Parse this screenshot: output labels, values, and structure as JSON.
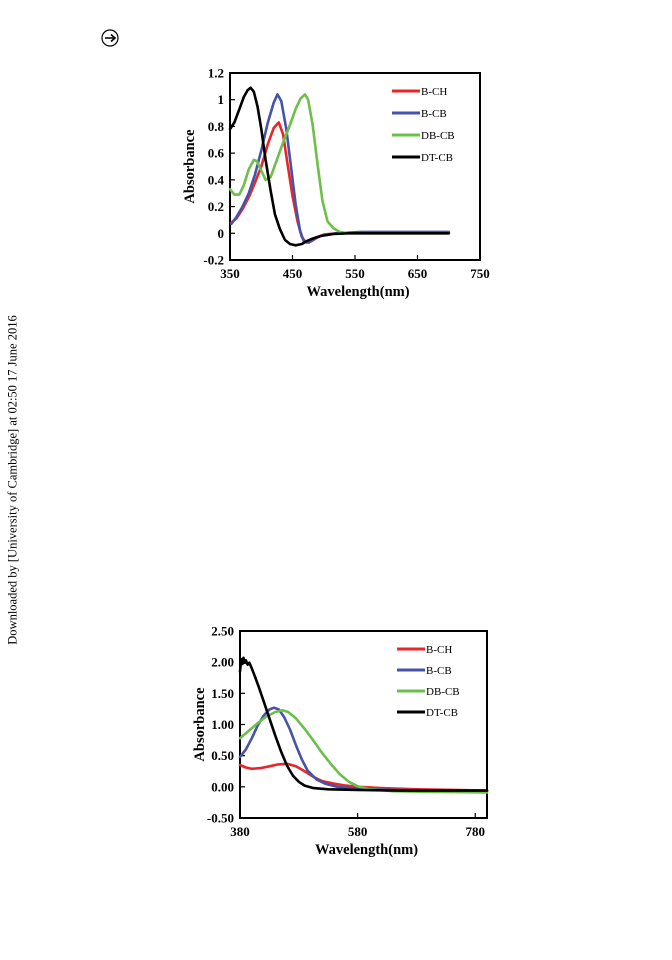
{
  "page": {
    "side_note": "Downloaded by [University of Cambridge] at 02:50 17 June 2016",
    "mark_icon": "circled-arrow-icon"
  },
  "colors": {
    "B-CH": "#e8262a",
    "B-CB": "#4653a8",
    "DB-CB": "#6cc04a",
    "DT-CB": "#000000"
  },
  "chart_data": [
    {
      "type": "line",
      "title": "",
      "xlabel": "Wavelength(nm)",
      "ylabel": "Absorbance",
      "xlim": [
        350,
        750
      ],
      "ylim": [
        -0.2,
        1.2
      ],
      "x_ticks": [
        350,
        450,
        550,
        650,
        750
      ],
      "x_tick_labels": [
        "350",
        "450",
        "550",
        "650",
        "750"
      ],
      "y_ticks": [
        -0.2,
        0,
        0.2,
        0.4,
        0.6,
        0.8,
        1,
        1.2
      ],
      "y_tick_labels": [
        "-0.2",
        "0",
        "0.2",
        "0.4",
        "0.6",
        "0.8",
        "1",
        "1.2"
      ],
      "grid": false,
      "legend_position": "top-right",
      "series": [
        {
          "name": "B-CH",
          "color": "#e8262a",
          "points": [
            [
              352,
              0.08
            ],
            [
              360,
              0.11
            ],
            [
              370,
              0.18
            ],
            [
              380,
              0.27
            ],
            [
              390,
              0.38
            ],
            [
              400,
              0.5
            ],
            [
              410,
              0.66
            ],
            [
              420,
              0.79
            ],
            [
              428,
              0.83
            ],
            [
              435,
              0.74
            ],
            [
              442,
              0.52
            ],
            [
              450,
              0.28
            ],
            [
              458,
              0.09
            ],
            [
              465,
              -0.03
            ],
            [
              472,
              -0.07
            ],
            [
              480,
              -0.06
            ],
            [
              490,
              -0.03
            ],
            [
              500,
              -0.01
            ],
            [
              520,
              0.0
            ],
            [
              560,
              0.005
            ],
            [
              600,
              0.005
            ],
            [
              650,
              0.005
            ],
            [
              700,
              0.005
            ]
          ]
        },
        {
          "name": "B-CB",
          "color": "#4653a8",
          "points": [
            [
              352,
              0.07
            ],
            [
              360,
              0.12
            ],
            [
              370,
              0.2
            ],
            [
              380,
              0.3
            ],
            [
              390,
              0.44
            ],
            [
              400,
              0.62
            ],
            [
              410,
              0.82
            ],
            [
              420,
              0.98
            ],
            [
              426,
              1.04
            ],
            [
              432,
              0.99
            ],
            [
              440,
              0.78
            ],
            [
              448,
              0.48
            ],
            [
              455,
              0.22
            ],
            [
              462,
              0.02
            ],
            [
              468,
              -0.06
            ],
            [
              476,
              -0.07
            ],
            [
              485,
              -0.04
            ],
            [
              495,
              -0.02
            ],
            [
              520,
              0.0
            ],
            [
              560,
              0.01
            ],
            [
              600,
              0.01
            ],
            [
              650,
              0.01
            ],
            [
              700,
              0.01
            ]
          ]
        },
        {
          "name": "DB-CB",
          "color": "#6cc04a",
          "points": [
            [
              350,
              0.33
            ],
            [
              357,
              0.29
            ],
            [
              365,
              0.29
            ],
            [
              372,
              0.36
            ],
            [
              380,
              0.48
            ],
            [
              388,
              0.55
            ],
            [
              393,
              0.54
            ],
            [
              400,
              0.47
            ],
            [
              407,
              0.4
            ],
            [
              415,
              0.42
            ],
            [
              425,
              0.55
            ],
            [
              435,
              0.68
            ],
            [
              445,
              0.8
            ],
            [
              455,
              0.93
            ],
            [
              463,
              1.01
            ],
            [
              470,
              1.04
            ],
            [
              475,
              1.0
            ],
            [
              482,
              0.82
            ],
            [
              490,
              0.52
            ],
            [
              498,
              0.24
            ],
            [
              506,
              0.09
            ],
            [
              515,
              0.04
            ],
            [
              525,
              0.01
            ],
            [
              540,
              0.0
            ],
            [
              580,
              0.0
            ],
            [
              640,
              0.0
            ],
            [
              700,
              0.0
            ]
          ]
        },
        {
          "name": "DT-CB",
          "color": "#000000",
          "points": [
            [
              350,
              0.78
            ],
            [
              357,
              0.83
            ],
            [
              365,
              0.93
            ],
            [
              372,
              1.02
            ],
            [
              378,
              1.07
            ],
            [
              383,
              1.09
            ],
            [
              388,
              1.06
            ],
            [
              394,
              0.95
            ],
            [
              400,
              0.78
            ],
            [
              407,
              0.55
            ],
            [
              415,
              0.32
            ],
            [
              422,
              0.14
            ],
            [
              430,
              0.03
            ],
            [
              438,
              -0.05
            ],
            [
              446,
              -0.08
            ],
            [
              455,
              -0.09
            ],
            [
              465,
              -0.08
            ],
            [
              472,
              -0.06
            ],
            [
              482,
              -0.04
            ],
            [
              495,
              -0.02
            ],
            [
              515,
              -0.005
            ],
            [
              540,
              0.0
            ],
            [
              600,
              0.0
            ],
            [
              650,
              0.0
            ],
            [
              700,
              0.0
            ]
          ]
        }
      ]
    },
    {
      "type": "line",
      "title": "",
      "xlabel": "Wavelength(nm)",
      "ylabel": "Absorbance",
      "xlim": [
        380,
        800
      ],
      "ylim": [
        -0.5,
        2.5
      ],
      "x_ticks": [
        380,
        580,
        780
      ],
      "x_tick_labels": [
        "380",
        "580",
        "780"
      ],
      "y_ticks": [
        -0.5,
        0,
        0.5,
        1,
        1.5,
        2,
        2.5
      ],
      "y_tick_labels": [
        "-0.50",
        "0.00",
        "0.50",
        "1.00",
        "1.50",
        "2.00",
        "2.50"
      ],
      "grid": false,
      "legend_position": "top-right",
      "series": [
        {
          "name": "B-CH",
          "color": "#e8262a",
          "points": [
            [
              380,
              0.35
            ],
            [
              390,
              0.31
            ],
            [
              400,
              0.29
            ],
            [
              415,
              0.3
            ],
            [
              430,
              0.33
            ],
            [
              445,
              0.36
            ],
            [
              460,
              0.37
            ],
            [
              475,
              0.33
            ],
            [
              490,
              0.25
            ],
            [
              505,
              0.16
            ],
            [
              520,
              0.09
            ],
            [
              540,
              0.05
            ],
            [
              560,
              0.02
            ],
            [
              580,
              0.0
            ],
            [
              620,
              -0.02
            ],
            [
              680,
              -0.04
            ],
            [
              740,
              -0.05
            ],
            [
              800,
              -0.06
            ]
          ]
        },
        {
          "name": "B-CB",
          "color": "#4653a8",
          "points": [
            [
              380,
              0.48
            ],
            [
              390,
              0.6
            ],
            [
              400,
              0.78
            ],
            [
              410,
              0.98
            ],
            [
              420,
              1.14
            ],
            [
              430,
              1.24
            ],
            [
              438,
              1.27
            ],
            [
              446,
              1.24
            ],
            [
              455,
              1.12
            ],
            [
              465,
              0.92
            ],
            [
              475,
              0.67
            ],
            [
              485,
              0.44
            ],
            [
              495,
              0.26
            ],
            [
              510,
              0.12
            ],
            [
              525,
              0.05
            ],
            [
              545,
              0.0
            ],
            [
              580,
              -0.03
            ],
            [
              640,
              -0.05
            ],
            [
              720,
              -0.06
            ],
            [
              800,
              -0.07
            ]
          ]
        },
        {
          "name": "DB-CB",
          "color": "#6cc04a",
          "points": [
            [
              380,
              0.78
            ],
            [
              395,
              0.9
            ],
            [
              410,
              1.02
            ],
            [
              425,
              1.13
            ],
            [
              440,
              1.2
            ],
            [
              452,
              1.23
            ],
            [
              462,
              1.2
            ],
            [
              475,
              1.1
            ],
            [
              490,
              0.93
            ],
            [
              505,
              0.74
            ],
            [
              520,
              0.54
            ],
            [
              535,
              0.36
            ],
            [
              550,
              0.2
            ],
            [
              565,
              0.08
            ],
            [
              580,
              0.01
            ],
            [
              600,
              -0.04
            ],
            [
              640,
              -0.07
            ],
            [
              700,
              -0.08
            ],
            [
              800,
              -0.09
            ]
          ]
        },
        {
          "name": "DT-CB",
          "color": "#000000",
          "points": [
            [
              380,
              1.85
            ],
            [
              382,
              2.05
            ],
            [
              384,
              1.97
            ],
            [
              386,
              2.07
            ],
            [
              388,
              1.99
            ],
            [
              390,
              2.03
            ],
            [
              393,
              1.96
            ],
            [
              396,
              1.99
            ],
            [
              400,
              1.9
            ],
            [
              405,
              1.78
            ],
            [
              412,
              1.6
            ],
            [
              420,
              1.38
            ],
            [
              430,
              1.1
            ],
            [
              440,
              0.82
            ],
            [
              450,
              0.56
            ],
            [
              460,
              0.34
            ],
            [
              470,
              0.18
            ],
            [
              480,
              0.08
            ],
            [
              490,
              0.02
            ],
            [
              505,
              -0.02
            ],
            [
              530,
              -0.04
            ],
            [
              580,
              -0.05
            ],
            [
              650,
              -0.06
            ],
            [
              720,
              -0.06
            ],
            [
              800,
              -0.06
            ]
          ]
        }
      ]
    }
  ]
}
